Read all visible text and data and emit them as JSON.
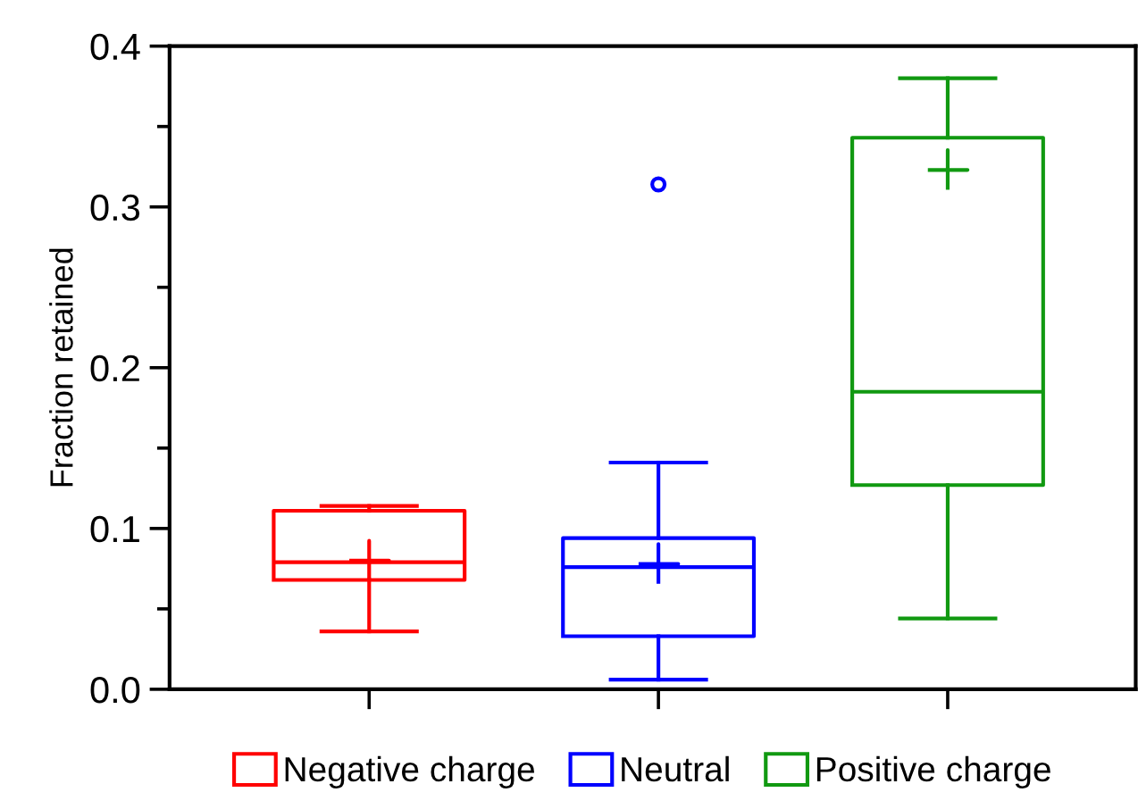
{
  "chart_data": {
    "type": "box",
    "ylabel": "Fraction retained",
    "categories": [
      null,
      null,
      null
    ],
    "series": [
      {
        "name": "Negative charge",
        "color": "#ff0000",
        "boxes": [
          {
            "low": 0.036,
            "q1": 0.068,
            "median": 0.079,
            "q3": 0.111,
            "high": 0.114,
            "mean": 0.08
          },
          null,
          null
        ]
      },
      {
        "name": "Neutral",
        "color": "#0000ff",
        "boxes": [
          null,
          {
            "low": 0.006,
            "q1": 0.033,
            "median": 0.076,
            "q3": 0.094,
            "high": 0.141,
            "mean": 0.078,
            "outliers": [
              0.314
            ]
          },
          null
        ]
      },
      {
        "name": "Positive charge",
        "color": "#119911",
        "boxes": [
          null,
          null,
          {
            "low": 0.044,
            "q1": 0.127,
            "median": 0.185,
            "q3": 0.343,
            "high": 0.38,
            "mean": 0.323
          }
        ]
      }
    ],
    "ylim": [
      0,
      0.4
    ],
    "yticks": [
      {
        "value": 0,
        "label": "0.0"
      },
      {
        "value": 0.05,
        "label": null
      },
      0.1,
      {
        "value": 0.15,
        "label": null
      },
      0.2,
      {
        "value": 0.25,
        "label": null
      },
      0.3,
      {
        "value": 0.35,
        "label": null
      },
      0.4
    ],
    "grid": false,
    "legend": "bottom"
  }
}
